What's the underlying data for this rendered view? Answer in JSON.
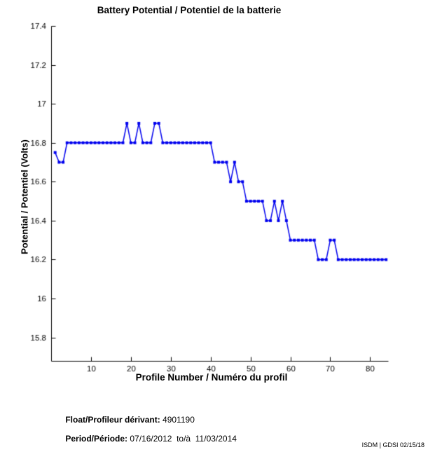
{
  "title": "Battery Potential / Potentiel de la batterie",
  "chart_data": {
    "type": "line",
    "title": "Battery Potential / Potentiel de la batterie",
    "xlabel": "Profile Number / Numéro du profil",
    "ylabel": "Potential / Potentiel (Volts)",
    "line_color": "#0000EE",
    "marker": "square",
    "grid": false,
    "legend": null,
    "xlim": [
      0,
      84.5
    ],
    "ylim": [
      15.68,
      17.4
    ],
    "xticks": [
      10,
      20,
      30,
      40,
      50,
      60,
      70,
      80
    ],
    "xticklabels": [
      "10",
      "20",
      "30",
      "40",
      "50",
      "60",
      "70",
      "80"
    ],
    "yticks": [
      15.8,
      16,
      16.2,
      16.4,
      16.6,
      16.8,
      17,
      17.2,
      17.4
    ],
    "yticklabels": [
      "15.8",
      "16",
      "16.2",
      "16.4",
      "16.6",
      "16.8",
      "17",
      "17.2",
      "17.4"
    ],
    "x_start": 1,
    "x_step": 1,
    "n_points": 84,
    "values": [
      16.75,
      16.7,
      16.7,
      16.8,
      16.8,
      16.8,
      16.8,
      16.8,
      16.8,
      16.8,
      16.8,
      16.8,
      16.8,
      16.8,
      16.8,
      16.8,
      16.8,
      16.8,
      16.9,
      16.8,
      16.8,
      16.9,
      16.8,
      16.8,
      16.8,
      16.9,
      16.9,
      16.8,
      16.8,
      16.8,
      16.8,
      16.8,
      16.8,
      16.8,
      16.8,
      16.8,
      16.8,
      16.8,
      16.8,
      16.8,
      16.7,
      16.7,
      16.7,
      16.7,
      16.6,
      16.7,
      16.6,
      16.6,
      16.5,
      16.5,
      16.5,
      16.5,
      16.5,
      16.4,
      16.4,
      16.5,
      16.4,
      16.5,
      16.4,
      16.3,
      16.3,
      16.3,
      16.3,
      16.3,
      16.3,
      16.3,
      16.2,
      16.2,
      16.2,
      16.3,
      16.3,
      16.2,
      16.2,
      16.2,
      16.2,
      16.2,
      16.2,
      16.2,
      16.2,
      16.2,
      16.2,
      16.2,
      16.2,
      16.2
    ]
  },
  "footer": {
    "float_label": "Float/Profileur dérivant:",
    "float_value": " 4901190",
    "period_label": "Period/Période:",
    "period_value": " 07/16/2012  to/à  11/03/2014",
    "credit": "ISDM | GDSI 02/15/18"
  }
}
